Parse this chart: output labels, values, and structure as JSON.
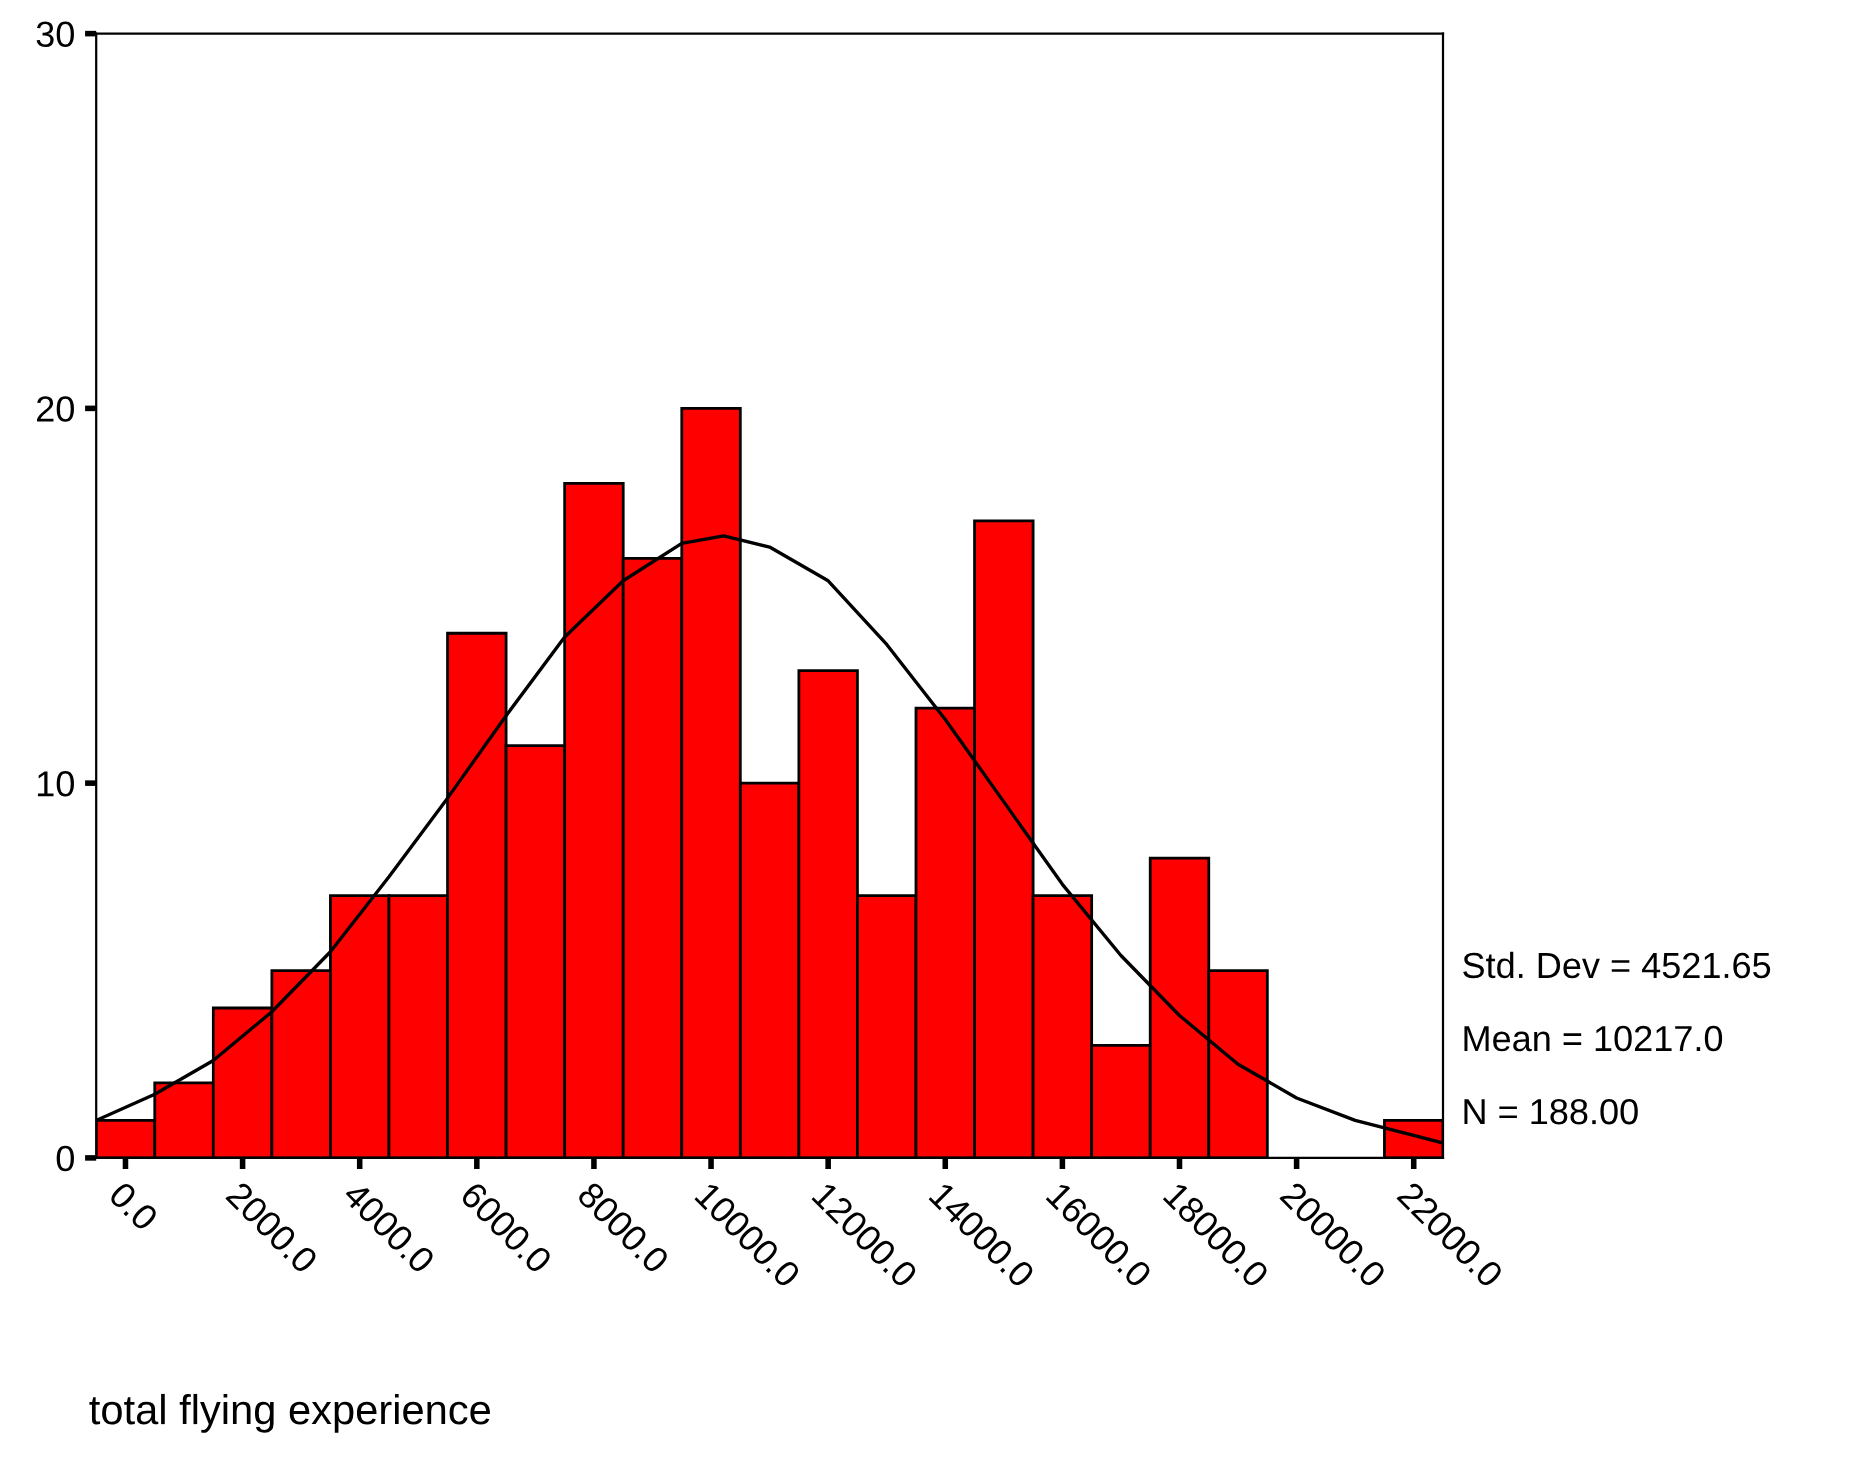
{
  "chart_data": {
    "type": "histogram",
    "xlabel": "total flying experience",
    "bins": [
      -500,
      500,
      1500,
      2500,
      3500,
      4500,
      5500,
      6500,
      7500,
      8500,
      9500,
      10500,
      11500,
      12500,
      13500,
      14500,
      15500,
      16500,
      17500,
      18500,
      19500,
      20500,
      21500,
      22500
    ],
    "values": [
      1,
      2,
      4,
      5,
      7,
      7,
      14,
      11,
      18,
      16,
      20,
      10,
      13,
      7,
      12,
      17,
      7,
      3,
      8,
      5,
      0,
      0,
      1
    ],
    "color": "#ff0000",
    "series": [
      {
        "type": "line",
        "color": "#000000",
        "x": [
          -500,
          500,
          1500,
          2500,
          3500,
          4500,
          5500,
          6500,
          7500,
          8500,
          9500,
          10217,
          11000,
          12000,
          13000,
          14000,
          15000,
          16000,
          17000,
          18000,
          19000,
          20000,
          21000,
          22000,
          22500
        ],
        "values": [
          1.0,
          1.7,
          2.6,
          3.9,
          5.5,
          7.5,
          9.6,
          11.8,
          13.9,
          15.4,
          16.4,
          16.6,
          16.3,
          15.4,
          13.7,
          11.7,
          9.5,
          7.3,
          5.4,
          3.8,
          2.5,
          1.6,
          1.0,
          0.6,
          0.4
        ]
      }
    ],
    "xlim": [
      -500,
      22500
    ],
    "ylim": [
      0,
      30
    ],
    "xticks": [
      {
        "value": 0,
        "label": "0.0"
      },
      {
        "value": 2000,
        "label": "2000.0"
      },
      {
        "value": 4000,
        "label": "4000.0"
      },
      {
        "value": 6000,
        "label": "6000.0"
      },
      {
        "value": 8000,
        "label": "8000.0"
      },
      {
        "value": 10000,
        "label": "10000.0"
      },
      {
        "value": 12000,
        "label": "12000.0"
      },
      {
        "value": 14000,
        "label": "14000.0"
      },
      {
        "value": 16000,
        "label": "16000.0"
      },
      {
        "value": 18000,
        "label": "18000.0"
      },
      {
        "value": 20000,
        "label": "20000.0"
      },
      {
        "value": 22000,
        "label": "22000.0"
      }
    ],
    "yticks": [
      0,
      10,
      20,
      30
    ],
    "grid": false,
    "legend": false,
    "annotations": [
      "Std. Dev = 4521.65",
      "Mean = 10217.0",
      "N = 188.00"
    ]
  }
}
